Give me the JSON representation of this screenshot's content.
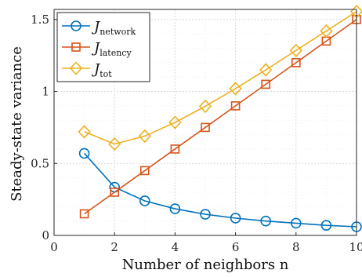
{
  "chart_data": {
    "type": "line",
    "x": [
      1,
      2,
      3,
      4,
      5,
      6,
      7,
      8,
      9,
      10
    ],
    "xlabel": "Number of neighbors n",
    "ylabel": "Steady-state variance",
    "xlim": [
      0,
      10
    ],
    "ylim": [
      0,
      1.57
    ],
    "xticks": [
      0,
      2,
      4,
      6,
      8,
      10
    ],
    "yticks": [
      0,
      0.5,
      1,
      1.5
    ],
    "xtick_labels": [
      "0",
      "2",
      "4",
      "6",
      "8",
      "10"
    ],
    "ytick_labels": [
      "0",
      "0.5",
      "1",
      "1.5"
    ],
    "grid": true,
    "legend_position": "top-left",
    "series": [
      {
        "name": "J_network",
        "legend_main": "J",
        "legend_sub": "network",
        "color": "#0072BD",
        "marker": "circle",
        "values": [
          0.57,
          0.335,
          0.24,
          0.185,
          0.147,
          0.12,
          0.1,
          0.085,
          0.07,
          0.06
        ]
      },
      {
        "name": "J_latency",
        "legend_main": "J",
        "legend_sub": "latency",
        "color": "#D95319",
        "marker": "square",
        "values": [
          0.15,
          0.3,
          0.45,
          0.6,
          0.75,
          0.9,
          1.05,
          1.2,
          1.35,
          1.5
        ]
      },
      {
        "name": "J_tot",
        "legend_main": "J",
        "legend_sub": "tot",
        "color": "#EDB120",
        "marker": "diamond",
        "values": [
          0.72,
          0.635,
          0.69,
          0.785,
          0.897,
          1.02,
          1.15,
          1.285,
          1.42,
          1.555
        ]
      }
    ]
  }
}
